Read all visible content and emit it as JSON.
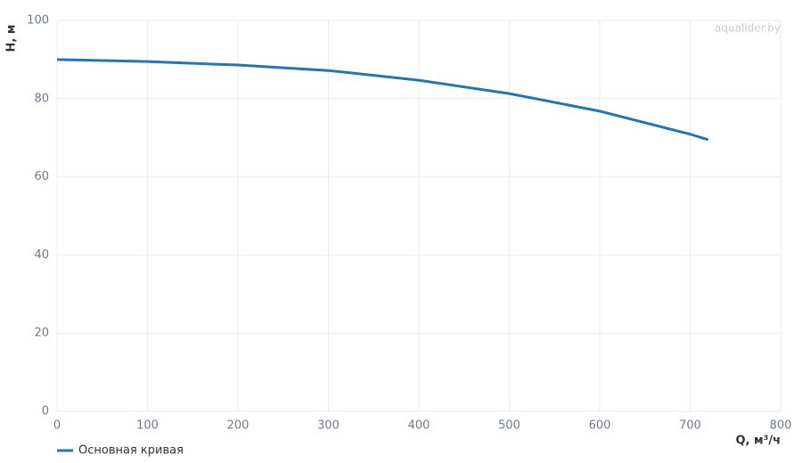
{
  "chart_data": {
    "type": "line",
    "watermark": "aqualider.by",
    "x_label": "Q, м³/ч",
    "y_label": "H, м",
    "x": [
      0,
      100,
      200,
      300,
      400,
      500,
      600,
      700,
      720
    ],
    "series": [
      {
        "name": "Основная кривая",
        "color": "#1f77b4",
        "values": [
          90.0,
          89.5,
          88.6,
          87.2,
          84.7,
          81.3,
          76.8,
          70.9,
          69.5
        ]
      }
    ],
    "xlim": [
      0,
      800
    ],
    "xticks": [
      0,
      100,
      200,
      300,
      400,
      500,
      600,
      700,
      800
    ],
    "ylim": [
      0,
      100
    ],
    "yticks": [
      0,
      20,
      40,
      60,
      80,
      100
    ],
    "grid": true
  }
}
